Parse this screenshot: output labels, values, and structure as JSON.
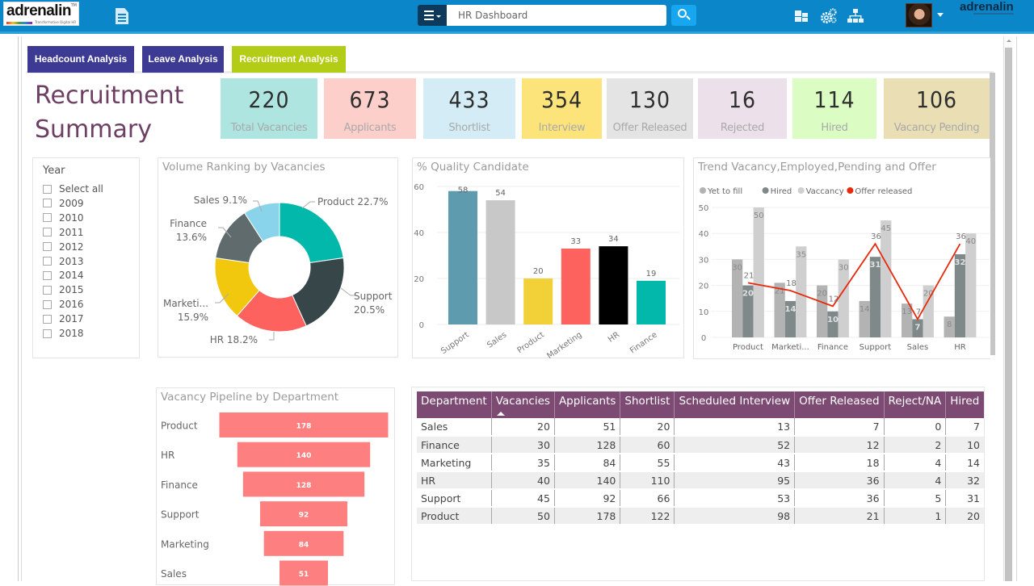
{
  "header": {
    "logo_text": "adrenalin",
    "logo_tagline": "Transformative Digital HR",
    "search_value": "HR Dashboard",
    "search_placeholder": "HR Dashboard",
    "brand_right": "adrenalin",
    "icons": [
      "document-icon",
      "menu-icon",
      "search-icon",
      "dashboard-icon",
      "settings-gears-icon",
      "org-chart-icon",
      "user-avatar",
      "caret-down-icon"
    ]
  },
  "tabs": [
    {
      "label": "Headcount Analysis",
      "active": false,
      "color": "#3c3a93"
    },
    {
      "label": "Leave Analysis",
      "active": false,
      "color": "#3c3a93"
    },
    {
      "label": "Recruitment Analysis",
      "active": true,
      "color": "#b3cc16"
    }
  ],
  "page_title": "Recruitment Summary",
  "kpis": [
    {
      "value": "220",
      "label": "Total Vacancies",
      "color": "#aee5e1"
    },
    {
      "value": "673",
      "label": "Applicants",
      "color": "#fdcfcb"
    },
    {
      "value": "433",
      "label": "Shortlist",
      "color": "#d3ecf6"
    },
    {
      "value": "354",
      "label": "Interview",
      "color": "#fde47a"
    },
    {
      "value": "130",
      "label": "Offer Released",
      "color": "#e4e4e4"
    },
    {
      "value": "16",
      "label": "Rejected",
      "color": "#ece0ea"
    },
    {
      "value": "114",
      "label": "Hired",
      "color": "#dbfcc2"
    },
    {
      "value": "106",
      "label": "Vacancy Pending",
      "color": "#e9deb4"
    }
  ],
  "year_slicer": {
    "title": "Year",
    "options": [
      "Select all",
      "2009",
      "2010",
      "2011",
      "2012",
      "2013",
      "2014",
      "2015",
      "2016",
      "2017",
      "2018"
    ],
    "checked": []
  },
  "chart_data": [
    {
      "id": "donut",
      "type": "pie",
      "title": "Volume Ranking by Vacancies",
      "donut": true,
      "slices": [
        {
          "label": "Product",
          "value": 22.7,
          "display": "Product 22.7%",
          "color": "#01b8aa"
        },
        {
          "label": "Support",
          "value": 20.5,
          "display": "Support|20.5%",
          "color": "#374649"
        },
        {
          "label": "HR",
          "value": 18.2,
          "display": "HR 18.2%",
          "color": "#fd625e"
        },
        {
          "label": "Marketing",
          "value": 15.9,
          "display": "Marketi...|15.9%",
          "color": "#f2c80f"
        },
        {
          "label": "Finance",
          "value": 13.6,
          "display": "Finance|13.6%",
          "color": "#5f6b6d"
        },
        {
          "label": "Sales",
          "value": 9.1,
          "display": "Sales 9.1%",
          "color": "#8ad4eb"
        }
      ]
    },
    {
      "id": "quality",
      "type": "bar",
      "title": "% Quality Candidate",
      "categories": [
        "Support",
        "Sales",
        "Product",
        "Marketing",
        "HR",
        "Finance"
      ],
      "values": [
        58,
        54,
        20,
        33,
        34,
        19
      ],
      "colors": [
        "#5f9baf",
        "#c8c8c8",
        "#f2d037",
        "#fd625e",
        "#000000",
        "#01b8aa"
      ],
      "yticks": [
        0,
        20,
        40,
        60
      ],
      "ylim": [
        0,
        60
      ],
      "grid": true
    },
    {
      "id": "trend",
      "type": "bar",
      "title": "Trend Vacancy,Employed,Pending and Offer",
      "categories": [
        "Product",
        "Marketi...",
        "Finance",
        "Support",
        "Sales",
        "HR"
      ],
      "series": [
        {
          "name": "Yet to fill",
          "kind": "bar",
          "color": "#b3b3b3",
          "values": [
            30,
            21,
            20,
            14,
            13,
            8
          ]
        },
        {
          "name": "Hired",
          "kind": "bar",
          "color": "#7f898a",
          "values": [
            20,
            14,
            10,
            31,
            7,
            32
          ]
        },
        {
          "name": "Vaccancy",
          "kind": "bar",
          "color": "#cfcfcf",
          "values": [
            50,
            35,
            30,
            45,
            20,
            40
          ]
        },
        {
          "name": "Offer released",
          "kind": "line",
          "color": "#e8290b",
          "values": [
            21,
            18,
            12,
            36,
            7,
            36
          ]
        }
      ],
      "yticks": [
        0,
        10,
        20,
        30,
        40,
        50
      ],
      "ylim": [
        0,
        50
      ],
      "legend": "top-left",
      "grid": true
    },
    {
      "id": "funnel",
      "type": "bar",
      "orientation": "funnel",
      "title": "Vacancy Pipeline by Department",
      "categories": [
        "Product",
        "HR",
        "Finance",
        "Support",
        "Marketing",
        "Sales"
      ],
      "values": [
        178,
        140,
        128,
        92,
        84,
        51
      ],
      "color": "#fd7f7f"
    }
  ],
  "table": {
    "columns": [
      "Department",
      "Vacancies",
      "Applicants",
      "Shortlist",
      "Scheduled Interview",
      "Offer Released",
      "Reject/NA",
      "Hired"
    ],
    "sorted_column": "Vacancies",
    "sort_direction": "ascending",
    "rows": [
      [
        "Sales",
        "20",
        "51",
        "20",
        "13",
        "7",
        "0",
        "7"
      ],
      [
        "Finance",
        "30",
        "128",
        "60",
        "52",
        "12",
        "2",
        "10"
      ],
      [
        "Marketing",
        "35",
        "84",
        "55",
        "43",
        "18",
        "4",
        "14"
      ],
      [
        "HR",
        "40",
        "140",
        "110",
        "95",
        "36",
        "4",
        "32"
      ],
      [
        "Support",
        "45",
        "92",
        "66",
        "53",
        "36",
        "5",
        "31"
      ],
      [
        "Product",
        "50",
        "178",
        "122",
        "98",
        "21",
        "1",
        "20"
      ]
    ]
  }
}
